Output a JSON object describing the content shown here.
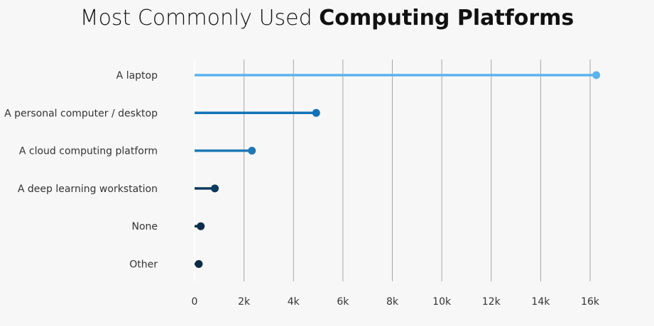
{
  "chart_data": {
    "type": "lollipop",
    "title_light": "Most Commonly Used",
    "title_bold": "Computing Platforms",
    "categories": [
      "A laptop",
      "A personal computer / desktop",
      "A cloud computing platform",
      "A deep learning workstation",
      "None",
      "Other"
    ],
    "values": [
      16250,
      4920,
      2320,
      820,
      250,
      170
    ],
    "colors": [
      "#5ab4ea",
      "#1373b8",
      "#1e78b4",
      "#0e3a5c",
      "#0d2e4d",
      "#0b2a45"
    ],
    "xlim": [
      0,
      16000
    ],
    "xticks": [
      0,
      2000,
      4000,
      6000,
      8000,
      10000,
      12000,
      14000,
      16000
    ],
    "xtick_labels": [
      "0",
      "2k",
      "4k",
      "6k",
      "8k",
      "10k",
      "12k",
      "14k",
      "16k"
    ],
    "grid": "vertical",
    "xlabel": "",
    "ylabel": ""
  }
}
